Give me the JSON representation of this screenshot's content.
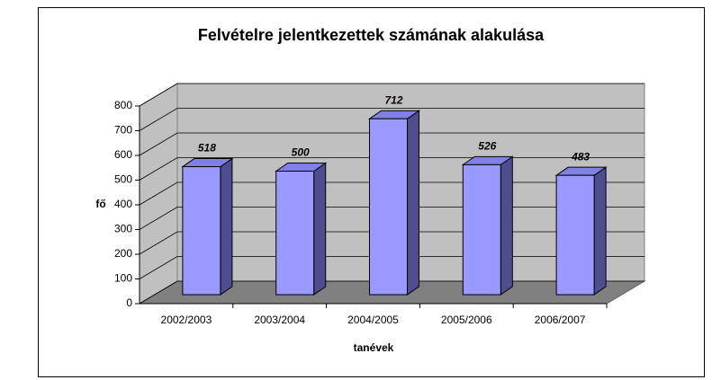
{
  "chart_data": {
    "type": "bar3d",
    "title": "Felvételre jelentkezettek számának alakulása",
    "x_label": "tanévek",
    "y_label": "fő",
    "categories": [
      "2002/2003",
      "2003/2004",
      "2004/2005",
      "2005/2006",
      "2006/2007"
    ],
    "values": [
      518,
      500,
      712,
      526,
      483
    ],
    "color": "#9999ff",
    "ylim": [
      0,
      800
    ],
    "yticks": [
      0,
      100,
      200,
      300,
      400,
      500,
      600,
      700,
      800
    ],
    "grid": true
  }
}
